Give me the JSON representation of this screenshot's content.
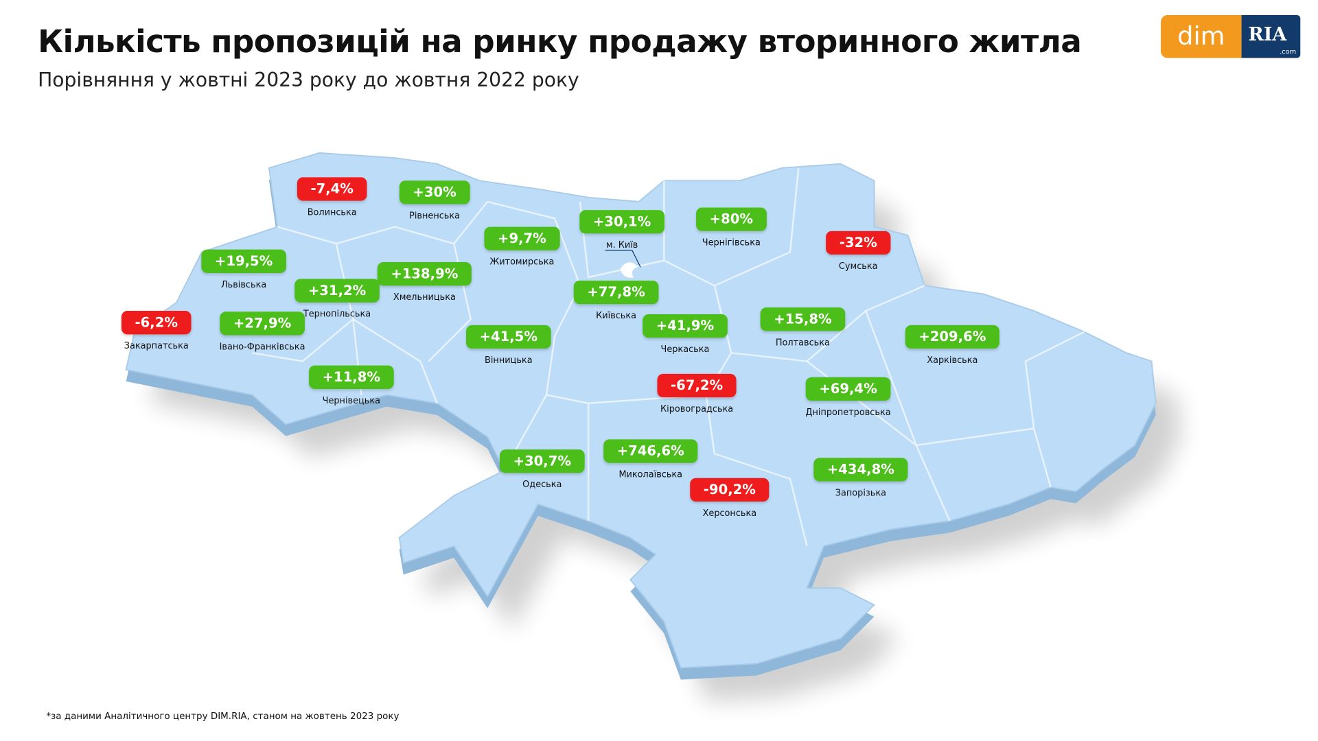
{
  "header": {
    "title": "Кількість пропозицій на ринку продажу вторинного житла",
    "subtitle": "Порівняння у жовтні 2023 року до жовтня 2022 року"
  },
  "logo": {
    "dim": "dim",
    "ria": "RIA",
    "com": ".com"
  },
  "regions": [
    {
      "name": "Волинська",
      "value": "-7,4%"
    },
    {
      "name": "Рівненська",
      "value": "+30%"
    },
    {
      "name": "м. Київ",
      "value": "+30,1%"
    },
    {
      "name": "Чернігівська",
      "value": "+80%"
    },
    {
      "name": "Житомирська",
      "value": "+9,7%"
    },
    {
      "name": "Сумська",
      "value": "-32%"
    },
    {
      "name": "Львівська",
      "value": "+19,5%"
    },
    {
      "name": "Хмельницька",
      "value": "+138,9%"
    },
    {
      "name": "Тернопільська",
      "value": "+31,2%"
    },
    {
      "name": "Київська",
      "value": "+77,8%"
    },
    {
      "name": "Закарпатська",
      "value": "-6,2%"
    },
    {
      "name": "Івано-Франківська",
      "value": "+27,9%"
    },
    {
      "name": "Черкаська",
      "value": "+41,9%"
    },
    {
      "name": "Полтавська",
      "value": "+15,8%"
    },
    {
      "name": "Вінницька",
      "value": "+41,5%"
    },
    {
      "name": "Харківська",
      "value": "+209,6%"
    },
    {
      "name": "Чернівецька",
      "value": "+11,8%"
    },
    {
      "name": "Кіровоградська",
      "value": "-67,2%"
    },
    {
      "name": "Дніпропетровська",
      "value": "+69,4%"
    },
    {
      "name": "Одеська",
      "value": "+30,7%"
    },
    {
      "name": "Миколаївська",
      "value": "+746,6%"
    },
    {
      "name": "Запорізька",
      "value": "+434,8%"
    },
    {
      "name": "Херсонська",
      "value": "-90,2%"
    }
  ],
  "footnote": "*за даними Аналітичного центру DIM.RIA, станом на жовтень 2023 року"
}
